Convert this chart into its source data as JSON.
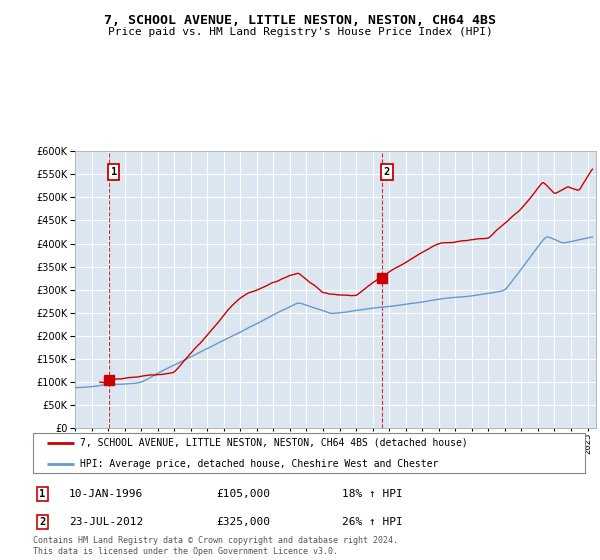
{
  "title": "7, SCHOOL AVENUE, LITTLE NESTON, NESTON, CH64 4BS",
  "subtitle": "Price paid vs. HM Land Registry's House Price Index (HPI)",
  "property_label": "7, SCHOOL AVENUE, LITTLE NESTON, NESTON, CH64 4BS (detached house)",
  "hpi_label": "HPI: Average price, detached house, Cheshire West and Chester",
  "footnote": "Contains HM Land Registry data © Crown copyright and database right 2024.\nThis data is licensed under the Open Government Licence v3.0.",
  "sale1_date": "10-JAN-1996",
  "sale1_price": "£105,000",
  "sale1_hpi": "18% ↑ HPI",
  "sale2_date": "23-JUL-2012",
  "sale2_price": "£325,000",
  "sale2_hpi": "26% ↑ HPI",
  "property_color": "#cc0000",
  "hpi_color": "#6699cc",
  "background_color": "#dce6f1",
  "ylim": [
    0,
    600000
  ],
  "yticks": [
    0,
    50000,
    100000,
    150000,
    200000,
    250000,
    300000,
    350000,
    400000,
    450000,
    500000,
    550000,
    600000
  ],
  "sale1_x": 1996.04,
  "sale1_y": 105000,
  "sale2_x": 2012.56,
  "sale2_y": 325000,
  "xmin": 1994,
  "xmax": 2025.5
}
